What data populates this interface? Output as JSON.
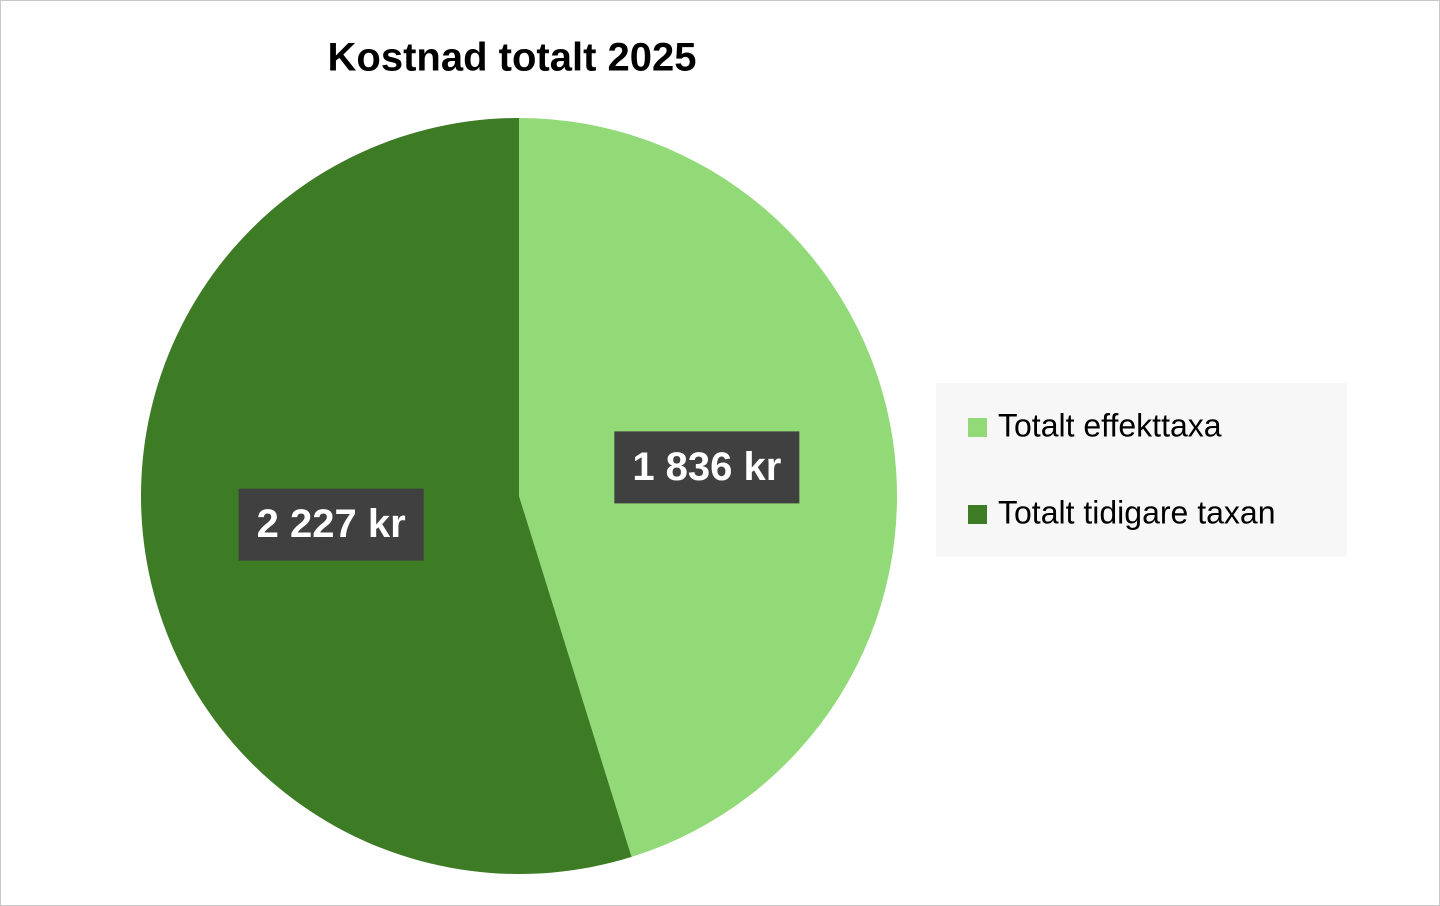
{
  "chart_data": {
    "type": "pie",
    "title": "Kostnad totalt 2025",
    "categories": [
      "Totalt effekttaxa",
      "Totalt tidigare taxan"
    ],
    "values": [
      1836,
      2227
    ],
    "value_labels": [
      "1 836 kr",
      "2 227 kr"
    ],
    "colors": [
      "#92d977",
      "#3d7b25"
    ],
    "legend": "right"
  }
}
